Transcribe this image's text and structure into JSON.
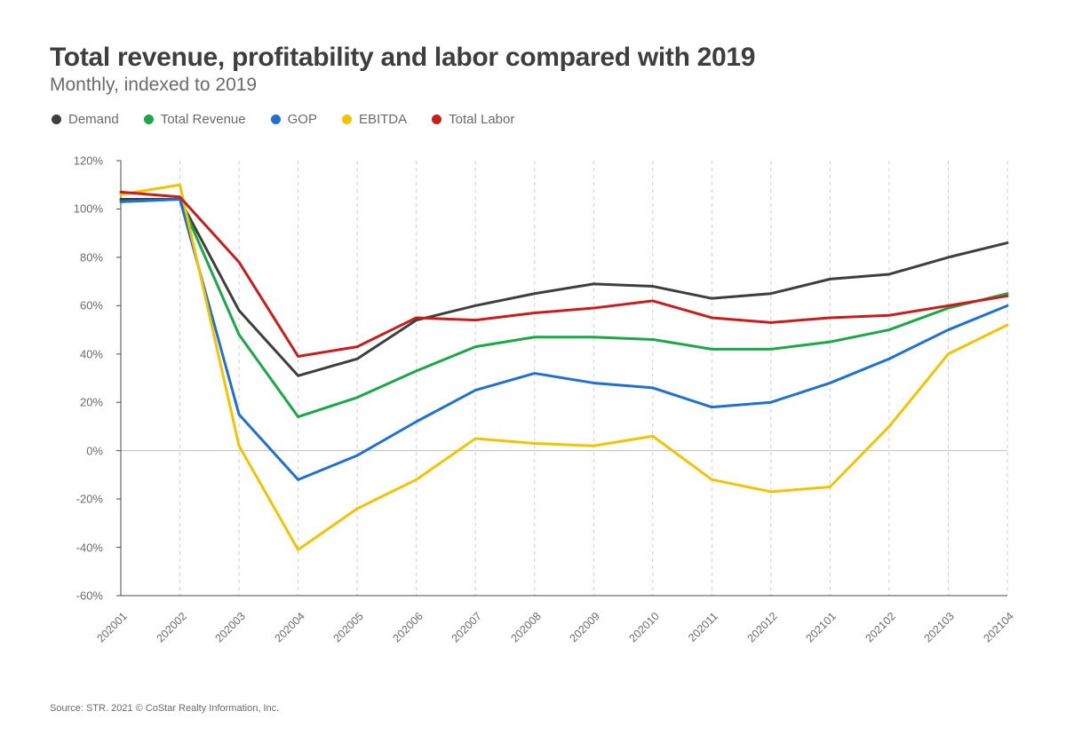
{
  "title": "Total revenue, profitability and labor compared with 2019",
  "subtitle": "Monthly, indexed to 2019",
  "source": "Source: STR. 2021 © CoStar Realty Information, Inc.",
  "chart": {
    "type": "line",
    "background_color": "#ffffff",
    "title_fontsize": 30,
    "subtitle_fontsize": 21,
    "label_fontsize": 13,
    "x_label_fontsize": 12.5,
    "x_label_rotation": -45,
    "line_width": 3,
    "grid_color": "#cfcfcf",
    "grid_dash": "4,4",
    "axis_color": "#4a4a4a",
    "zero_line_color": "#bfbfbf",
    "x_categories": [
      "202001",
      "202002",
      "202003",
      "202004",
      "202005",
      "202006",
      "202007",
      "202008",
      "202009",
      "202010",
      "202011",
      "202012",
      "202101",
      "202102",
      "202103",
      "202104"
    ],
    "ylim": [
      -60,
      120
    ],
    "ytick_step": 20,
    "y_suffix": "%",
    "series": [
      {
        "name": "Demand",
        "color": "#3e3e3e",
        "values": [
          104,
          104,
          58,
          31,
          38,
          54,
          60,
          65,
          69,
          68,
          63,
          65,
          71,
          73,
          80,
          86
        ]
      },
      {
        "name": "Total Revenue",
        "color": "#1aa846",
        "values": [
          103,
          104,
          48,
          14,
          22,
          33,
          43,
          47,
          47,
          46,
          42,
          42,
          45,
          50,
          59,
          65
        ]
      },
      {
        "name": "GOP",
        "color": "#1f70d1",
        "values": [
          103,
          104,
          15,
          -12,
          -2,
          12,
          25,
          32,
          28,
          26,
          18,
          20,
          28,
          38,
          50,
          60
        ]
      },
      {
        "name": "EBITDA",
        "color": "#f2c400",
        "values": [
          106,
          110,
          2,
          -41,
          -24,
          -12,
          5,
          3,
          2,
          6,
          -12,
          -17,
          -15,
          10,
          40,
          52
        ]
      },
      {
        "name": "Total Labor",
        "color": "#c91d1d",
        "values": [
          107,
          105,
          78,
          39,
          43,
          55,
          54,
          57,
          59,
          62,
          55,
          53,
          55,
          56,
          60,
          64
        ]
      }
    ]
  }
}
